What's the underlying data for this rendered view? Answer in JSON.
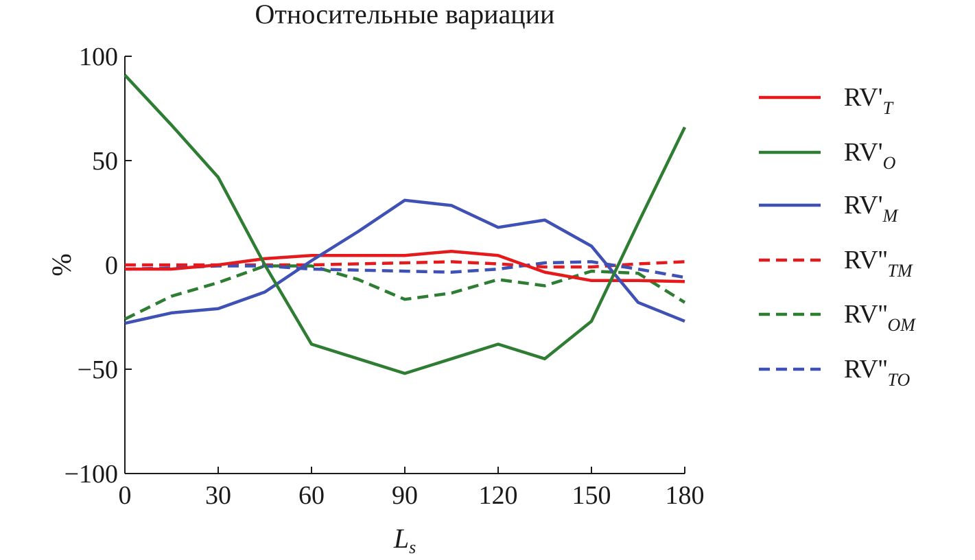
{
  "chart_data": {
    "type": "line",
    "title": "Относительные вариации",
    "xlabel": "L",
    "xlabel_sub": "s",
    "ylabel": "%",
    "xlim": [
      0,
      180
    ],
    "ylim": [
      -100,
      100
    ],
    "xticks": [
      0,
      30,
      60,
      90,
      120,
      150,
      180
    ],
    "yticks": [
      100,
      50,
      0,
      -50,
      -100
    ],
    "ytick_labels": [
      "100",
      "50",
      "0",
      "−50",
      "−100"
    ],
    "x": [
      0,
      15,
      30,
      45,
      60,
      75,
      90,
      105,
      120,
      135,
      150,
      165,
      180
    ],
    "legend_position": "right",
    "series": [
      {
        "name": "RV'T",
        "label_main": "RV'",
        "label_sub": "T",
        "color": "#e41a1c",
        "dash": "solid",
        "values": [
          -2,
          -2,
          0,
          3,
          4.5,
          4.5,
          4.5,
          6.5,
          4.5,
          -3.5,
          -7.5,
          -7.5,
          -8
        ]
      },
      {
        "name": "RV'O",
        "label_main": "RV'",
        "label_sub": "O",
        "color": "#2e7d32",
        "dash": "solid",
        "values": [
          91,
          67,
          42,
          0,
          -38,
          -45,
          -52,
          -45,
          -38,
          -45,
          -27,
          20,
          66
        ]
      },
      {
        "name": "RV'M",
        "label_main": "RV'",
        "label_sub": "M",
        "color": "#3f51b5",
        "dash": "solid",
        "values": [
          -28,
          -23,
          -21,
          -13,
          2,
          16,
          31,
          28.5,
          18,
          21.5,
          9,
          -18,
          -27
        ]
      },
      {
        "name": "RV''TM",
        "label_main": "RV''",
        "label_sub": "TM",
        "color": "#e41a1c",
        "dash": "dashed",
        "values": [
          0,
          0,
          0,
          0,
          0,
          0.5,
          1,
          1.5,
          0.5,
          -1,
          -1,
          0.5,
          1.5
        ]
      },
      {
        "name": "RV''OM",
        "label_main": "RV''",
        "label_sub": "OM",
        "color": "#2e7d32",
        "dash": "dashed",
        "values": [
          -26,
          -15,
          -8.5,
          -0.5,
          -0.5,
          -7,
          -16.5,
          -13.5,
          -7,
          -10,
          -3,
          -4,
          -18
        ]
      },
      {
        "name": "RV''TO",
        "label_main": "RV''",
        "label_sub": "TO",
        "color": "#3f51b5",
        "dash": "dashed",
        "values": [
          -2,
          -1.5,
          -0.5,
          -0.5,
          -2,
          -2.5,
          -3,
          -3.5,
          -2,
          1,
          1.5,
          -2,
          -6
        ]
      }
    ]
  }
}
